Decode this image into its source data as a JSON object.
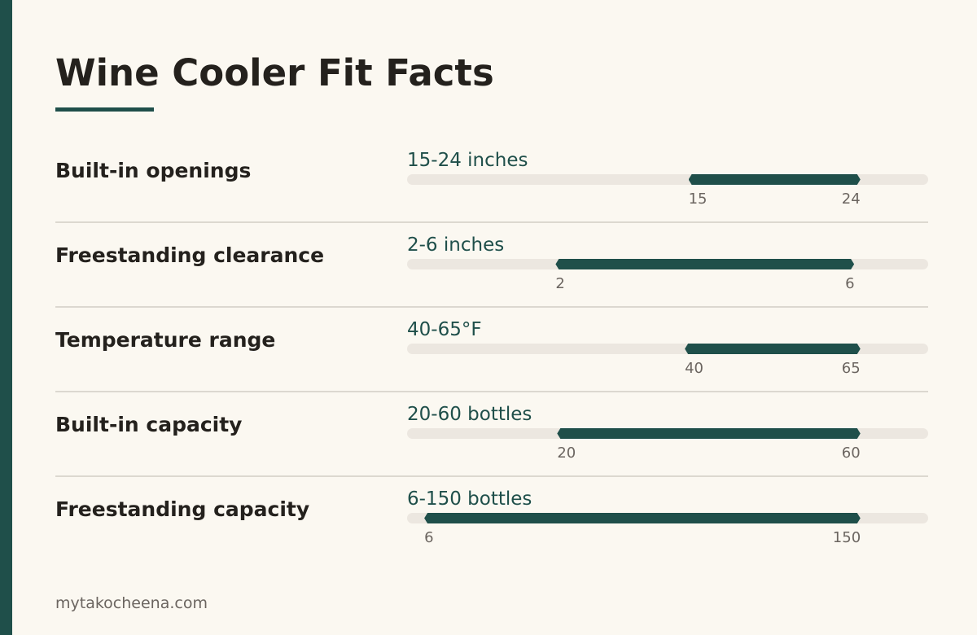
{
  "title": "Wine Cooler Fit Facts",
  "colors": {
    "accent": "#1f4f4a",
    "background": "#fbf8f1",
    "track": "#ece7e0",
    "text": "#24211d",
    "muted": "#6b6560"
  },
  "rows": [
    {
      "label": "Built-in openings",
      "value_text": "15-24 inches",
      "min_label": "15",
      "max_label": "24",
      "range_start": 0.54,
      "range_end": 0.87
    },
    {
      "label": "Freestanding clearance",
      "value_text": "2-6 inches",
      "min_label": "2",
      "max_label": "6",
      "range_start": 0.285,
      "range_end": 0.858
    },
    {
      "label": "Temperature range",
      "value_text": "40-65°F",
      "min_label": "40",
      "max_label": "65",
      "range_start": 0.533,
      "range_end": 0.87
    },
    {
      "label": "Built-in capacity",
      "value_text": "20-60 bottles",
      "min_label": "20",
      "max_label": "60",
      "range_start": 0.288,
      "range_end": 0.87
    },
    {
      "label": "Freestanding capacity",
      "value_text": "6-150 bottles",
      "min_label": "6",
      "max_label": "150",
      "range_start": 0.033,
      "range_end": 0.87
    }
  ],
  "footer": "mytakocheena.com"
}
